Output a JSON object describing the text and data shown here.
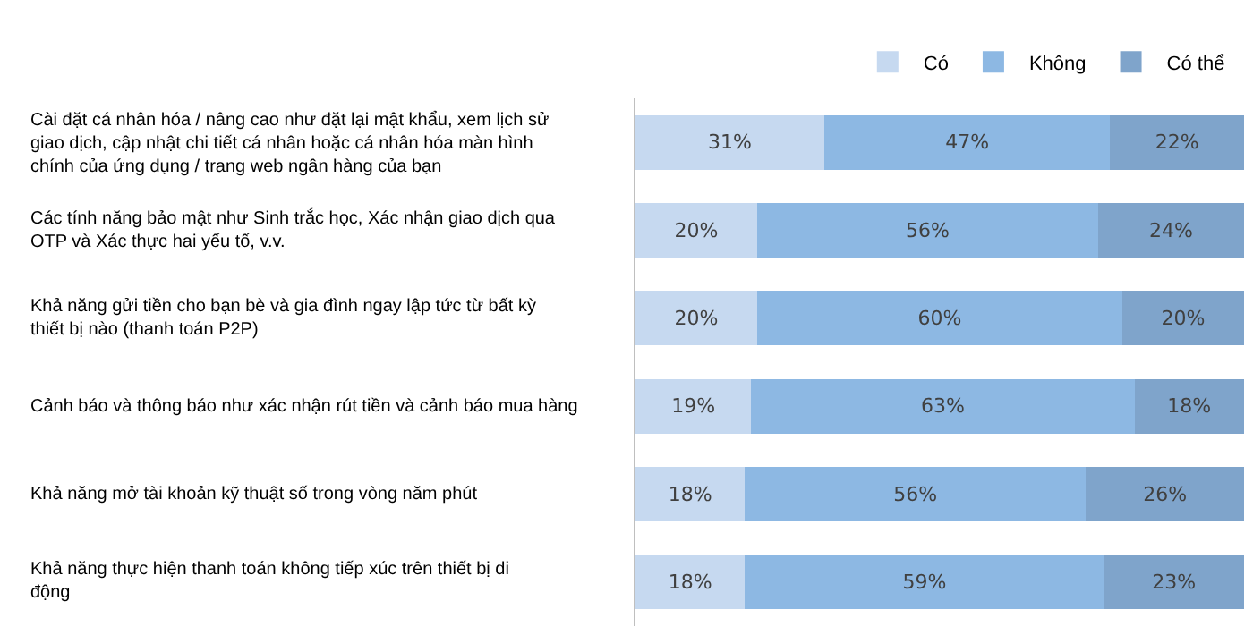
{
  "chart_data": {
    "type": "bar",
    "orientation": "horizontal",
    "stacked": true,
    "categories": [
      "Cài đặt cá nhân hóa / nâng cao như đặt lại mật khẩu, xem lịch sử giao dịch, cập nhật chi tiết cá nhân hoặc cá nhân hóa màn hình chính của ứng dụng / trang web ngân hàng của bạn",
      "Các tính năng bảo mật như Sinh trắc học, Xác nhận giao dịch qua OTP và Xác thực hai yếu tố, v.v.",
      "Khả năng gửi tiền cho bạn bè và gia đình ngay lập tức từ bất kỳ thiết bị nào (thanh toán P2P)",
      "Cảnh báo và thông báo như xác nhận rút tiền và cảnh báo mua hàng",
      "Khả năng mở tài khoản kỹ thuật số trong vòng năm phút",
      "Khả năng thực hiện thanh toán không tiếp xúc trên thiết bị di động"
    ],
    "series": [
      {
        "name": "Có",
        "color": "#c6d9f0",
        "values": [
          31,
          20,
          20,
          19,
          18,
          18
        ],
        "value_labels": [
          "31%",
          "20%",
          "20%",
          "19%",
          "18%",
          "18%"
        ]
      },
      {
        "name": "Không",
        "color": "#8db8e3",
        "values": [
          47,
          56,
          60,
          63,
          56,
          59
        ],
        "value_labels": [
          "47%",
          "56%",
          "60%",
          "63%",
          "56%",
          "59%"
        ]
      },
      {
        "name": "Có thể",
        "color": "#7fa4cb",
        "values": [
          22,
          24,
          20,
          18,
          26,
          23
        ],
        "value_labels": [
          "22%",
          "24%",
          "20%",
          "18%",
          "26%",
          "23%"
        ]
      }
    ],
    "xlim": [
      0,
      100
    ],
    "tick_labels": "y",
    "legend": "top right"
  }
}
